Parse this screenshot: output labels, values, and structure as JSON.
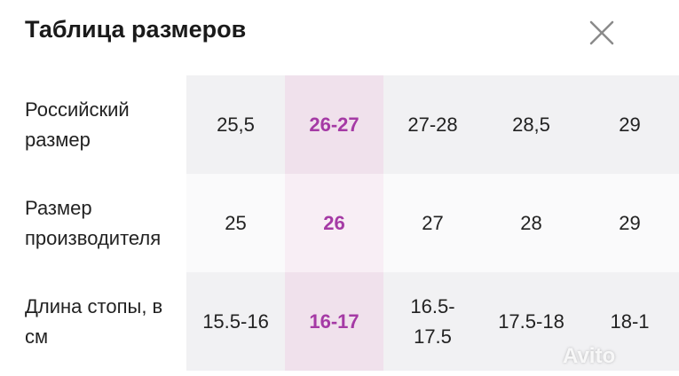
{
  "header": {
    "title": "Таблица размеров"
  },
  "table": {
    "rows": [
      {
        "label": "Российский размер",
        "cells": [
          "25,5",
          "26-27",
          "27-28",
          "28,5",
          "29"
        ]
      },
      {
        "label": "Размер производителя",
        "cells": [
          "25",
          "26",
          "27",
          "28",
          "29"
        ]
      },
      {
        "label": "Длина стопы, в см",
        "cells": [
          "15.5-16",
          "16-17",
          "16.5-17.5",
          "17.5-18",
          "18-1"
        ]
      }
    ]
  },
  "watermark": "Avito"
}
